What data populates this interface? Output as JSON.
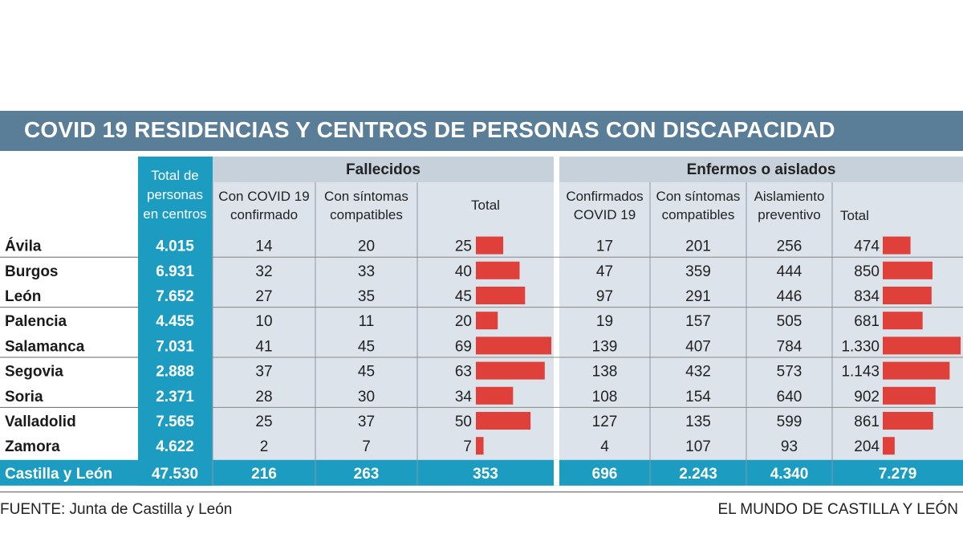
{
  "title": "COVID 19 RESIDENCIAS Y CENTROS DE PERSONAS CON DISCAPACIDAD",
  "headers": {
    "total_lines": [
      "Total de",
      "personas",
      "en centros"
    ],
    "fallecidos": "Fallecidos",
    "enfermos": "Enfermos o aislados",
    "f_covid": [
      "Con COVID 19",
      "confirmado"
    ],
    "f_sintomas": [
      "Con síntomas",
      "compatibles"
    ],
    "f_total": "Total",
    "e_confirmados": [
      "Confirmados",
      "COVID 19"
    ],
    "e_sintomas": [
      "Con síntomas",
      "compatibles"
    ],
    "e_aislamiento": [
      "Aislamiento",
      "preventivo"
    ],
    "e_total": "Total"
  },
  "chart_data": {
    "type": "table",
    "title": "COVID 19 RESIDENCIAS Y CENTROS DE PERSONAS CON DISCAPACIDAD",
    "columns": [
      "Total de personas en centros",
      "Fallecidos: Con COVID 19 confirmado",
      "Fallecidos: Con síntomas compatibles",
      "Fallecidos: Total",
      "Enfermos o aislados: Confirmados COVID 19",
      "Enfermos o aislados: Con síntomas compatibles",
      "Enfermos o aislados: Aislamiento preventivo",
      "Enfermos o aislados: Total"
    ],
    "rows": [
      {
        "name": "Ávila",
        "total": "4.015",
        "f_covid": "14",
        "f_sint": "20",
        "f_total": "25",
        "f_total_value": 25,
        "e_conf": "17",
        "e_sint": "201",
        "e_aisl": "256",
        "e_total": "474",
        "e_total_value": 474
      },
      {
        "name": "Burgos",
        "total": "6.931",
        "f_covid": "32",
        "f_sint": "33",
        "f_total": "40",
        "f_total_value": 40,
        "e_conf": "47",
        "e_sint": "359",
        "e_aisl": "444",
        "e_total": "850",
        "e_total_value": 850
      },
      {
        "name": "León",
        "total": "7.652",
        "f_covid": "27",
        "f_sint": "35",
        "f_total": "45",
        "f_total_value": 45,
        "e_conf": "97",
        "e_sint": "291",
        "e_aisl": "446",
        "e_total": "834",
        "e_total_value": 834
      },
      {
        "name": "Palencia",
        "total": "4.455",
        "f_covid": "10",
        "f_sint": "11",
        "f_total": "20",
        "f_total_value": 20,
        "e_conf": "19",
        "e_sint": "157",
        "e_aisl": "505",
        "e_total": "681",
        "e_total_value": 681
      },
      {
        "name": "Salamanca",
        "total": "7.031",
        "f_covid": "41",
        "f_sint": "45",
        "f_total": "69",
        "f_total_value": 69,
        "e_conf": "139",
        "e_sint": "407",
        "e_aisl": "784",
        "e_total": "1.330",
        "e_total_value": 1330
      },
      {
        "name": "Segovia",
        "total": "2.888",
        "f_covid": "37",
        "f_sint": "45",
        "f_total": "63",
        "f_total_value": 63,
        "e_conf": "138",
        "e_sint": "432",
        "e_aisl": "573",
        "e_total": "1.143",
        "e_total_value": 1143
      },
      {
        "name": "Soria",
        "total": "2.371",
        "f_covid": "28",
        "f_sint": "30",
        "f_total": "34",
        "f_total_value": 34,
        "e_conf": "108",
        "e_sint": "154",
        "e_aisl": "640",
        "e_total": "902",
        "e_total_value": 902
      },
      {
        "name": "Valladolid",
        "total": "7.565",
        "f_covid": "25",
        "f_sint": "37",
        "f_total": "50",
        "f_total_value": 50,
        "e_conf": "127",
        "e_sint": "135",
        "e_aisl": "599",
        "e_total": "861",
        "e_total_value": 861
      },
      {
        "name": "Zamora",
        "total": "4.622",
        "f_covid": "2",
        "f_sint": "7",
        "f_total": "7",
        "f_total_value": 7,
        "e_conf": "4",
        "e_sint": "107",
        "e_aisl": "93",
        "e_total": "204",
        "e_total_value": 204
      }
    ],
    "totals": {
      "name": "Castilla y León",
      "total": "47.530",
      "f_covid": "216",
      "f_sint": "263",
      "f_total": "353",
      "e_conf": "696",
      "e_sint": "2.243",
      "e_aisl": "4.340",
      "e_total": "7.279"
    },
    "bar_max": {
      "f_total": 69,
      "e_total": 1330
    }
  },
  "colors": {
    "title_bg": "#5a7d98",
    "accent": "#1b9cc0",
    "panel": "#dde3ea",
    "panel_dark": "#c7d1db",
    "bar": "#e0403a"
  },
  "footer": {
    "source": "FUENTE:  Junta de Castilla y León",
    "credit": "EL MUNDO DE CASTILLA Y LEÓN"
  }
}
